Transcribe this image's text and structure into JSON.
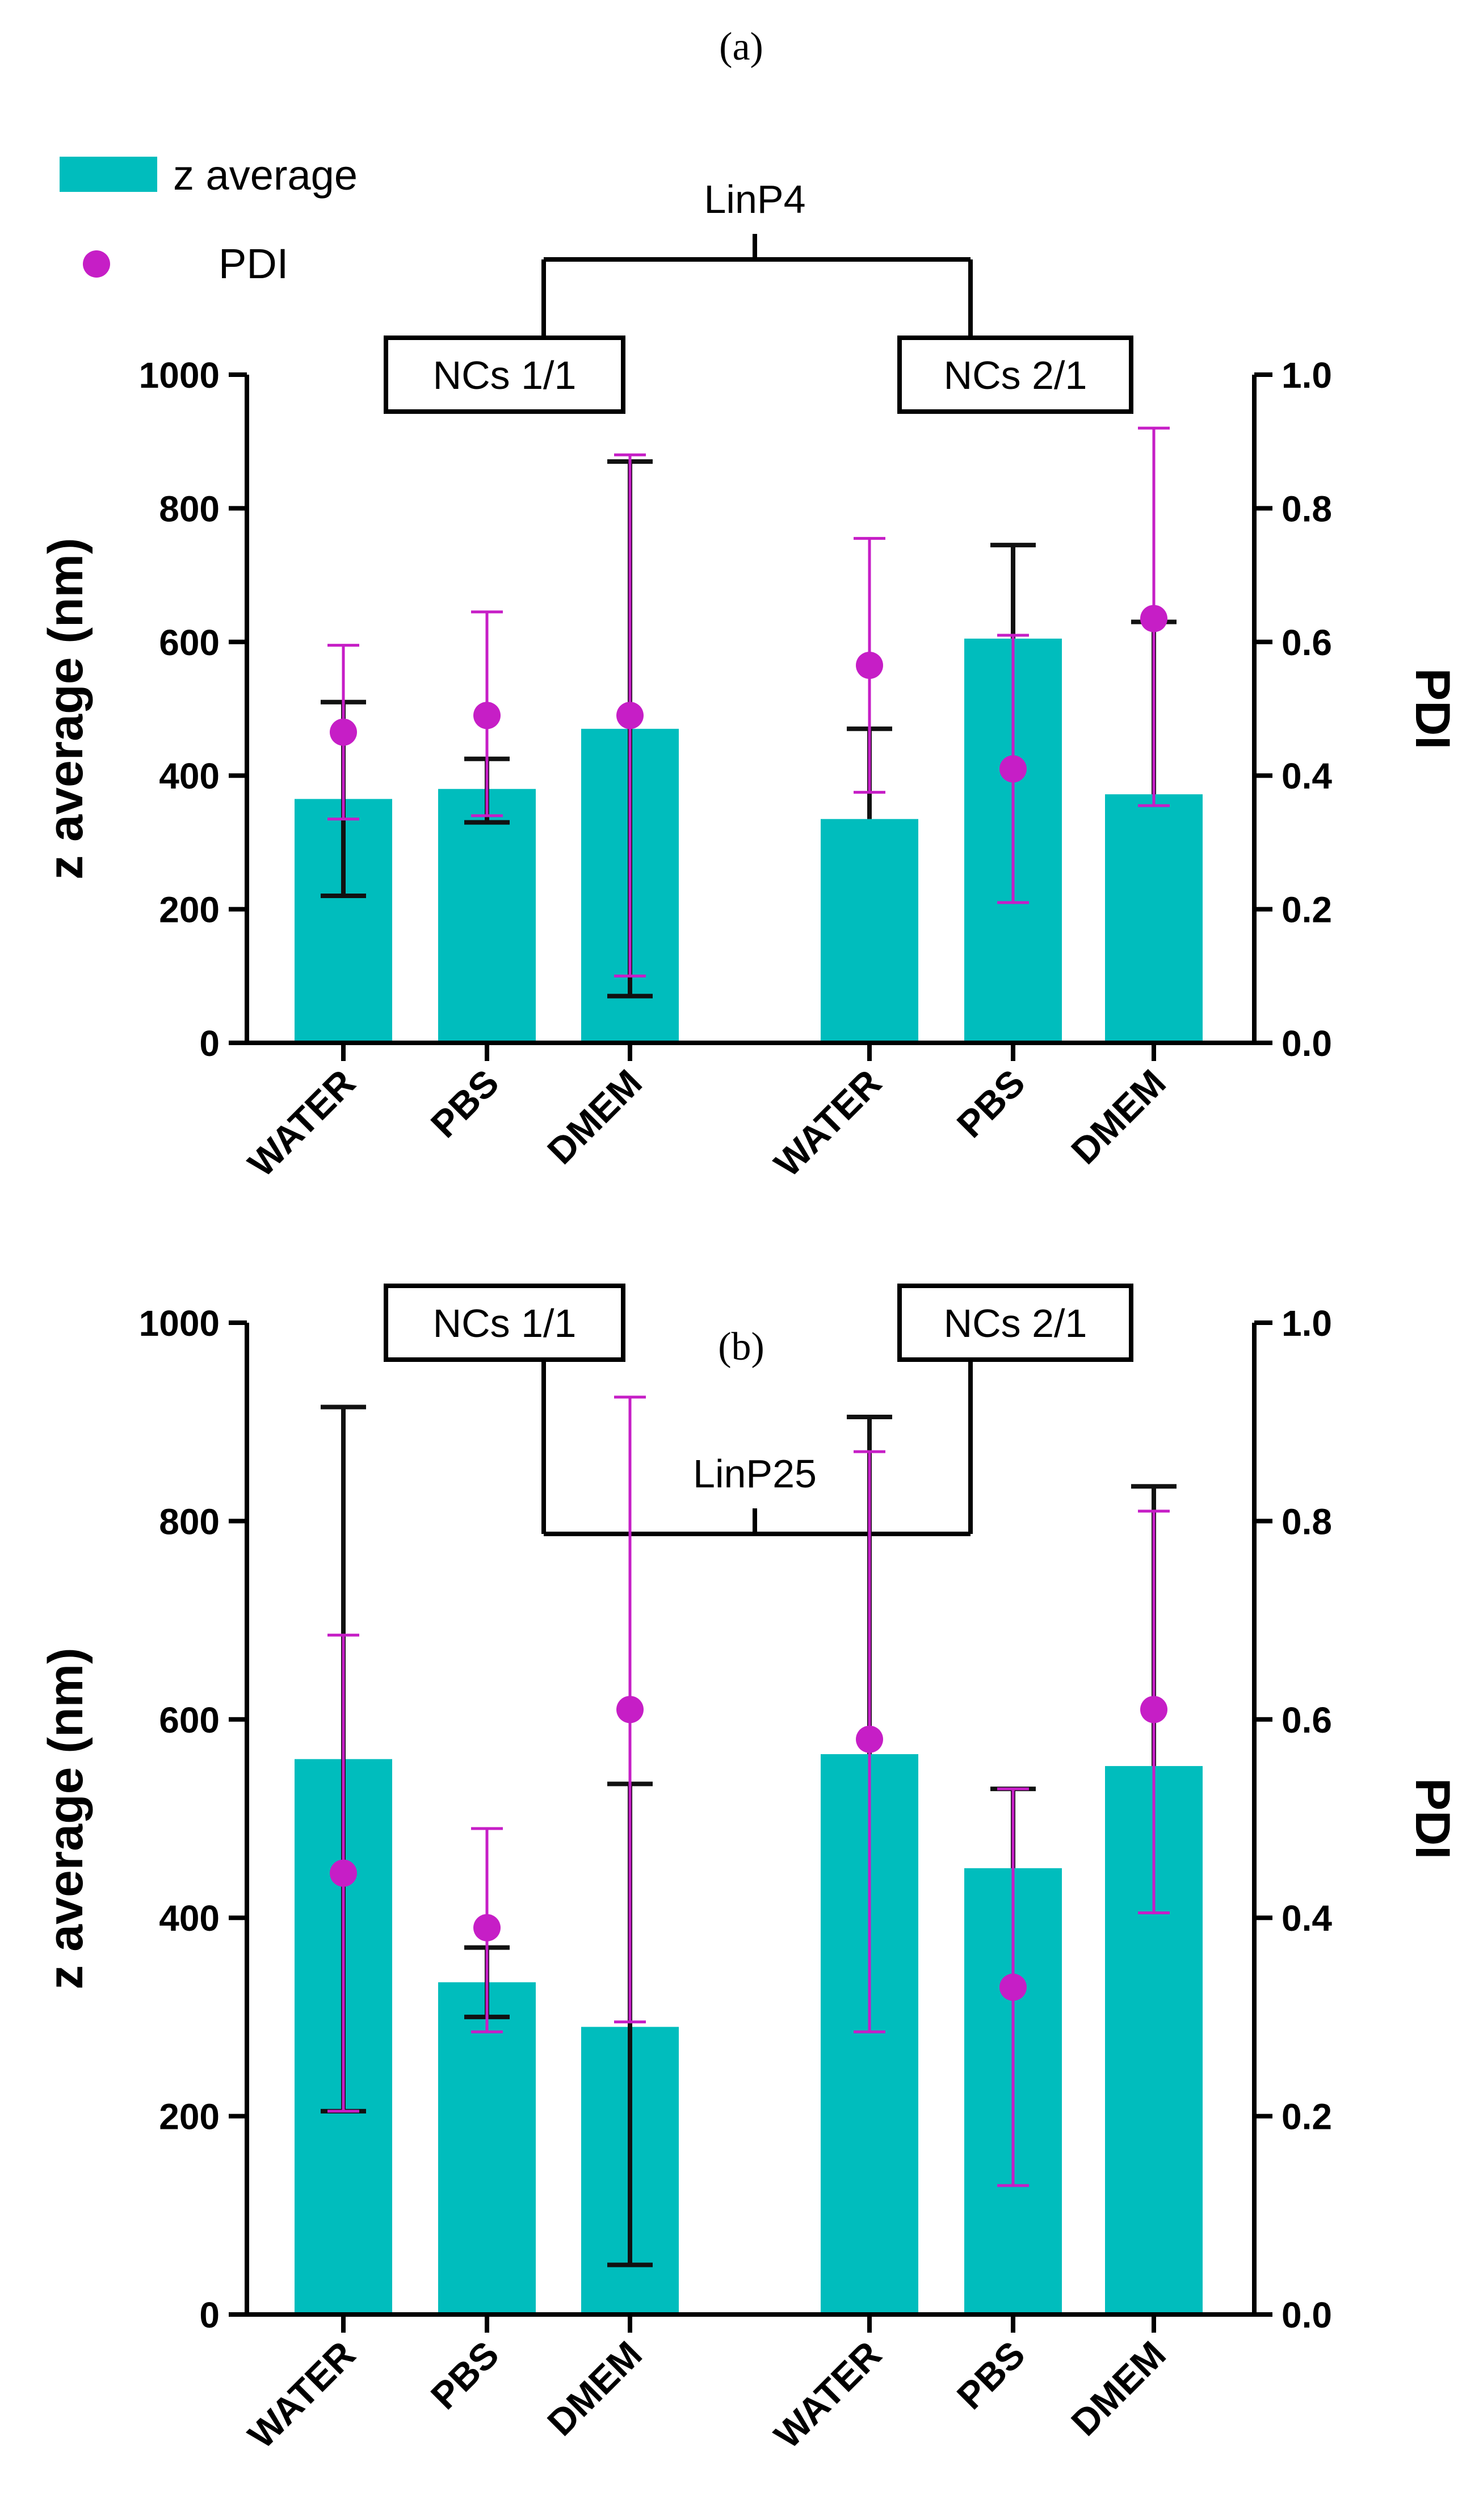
{
  "legend": {
    "bar_label": "z average",
    "point_label": "PDI",
    "bar_color": "#00BDBD",
    "point_color": "#C61EC6"
  },
  "chart_data": [
    {
      "type": "bar",
      "panel": "(a)",
      "title": "LinP4",
      "groups": [
        "NCs 1/1",
        "NCs 2/1"
      ],
      "categories": [
        "WATER",
        "PBS",
        "DMEM",
        "WATER",
        "PBS",
        "DMEM"
      ],
      "ylabel": "z average (nm)",
      "y2label": "PDI",
      "ylim": [
        0,
        1000
      ],
      "y2lim": [
        0,
        1.0
      ],
      "yticks": [
        "0",
        "200",
        "400",
        "600",
        "800",
        "1000"
      ],
      "y2ticks": [
        "0.0",
        "0.2",
        "0.4",
        "0.6",
        "0.8",
        "1.0"
      ],
      "series": [
        {
          "name": "z average",
          "axis": "left",
          "values": [
            365,
            380,
            470,
            335,
            605,
            372
          ],
          "err_low": [
            220,
            330,
            70,
            335,
            605,
            372
          ],
          "err_high": [
            510,
            425,
            870,
            470,
            745,
            630
          ]
        },
        {
          "name": "PDI",
          "axis": "right",
          "values": [
            0.465,
            0.49,
            0.49,
            0.565,
            0.41,
            0.635
          ],
          "err_low": [
            0.335,
            0.34,
            0.1,
            0.375,
            0.21,
            0.355
          ],
          "err_high": [
            0.595,
            0.645,
            0.88,
            0.755,
            0.61,
            0.92
          ]
        }
      ]
    },
    {
      "type": "bar",
      "panel": "(b)",
      "title": "LinP25",
      "groups": [
        "NCs 1/1",
        "NCs 2/1"
      ],
      "categories": [
        "WATER",
        "PBS",
        "DMEM",
        "WATER",
        "PBS",
        "DMEM"
      ],
      "ylabel": "z average (nm)",
      "y2label": "PDI",
      "ylim": [
        0,
        1000
      ],
      "y2lim": [
        0,
        1.0
      ],
      "yticks": [
        "0",
        "200",
        "400",
        "600",
        "800",
        "1000"
      ],
      "y2ticks": [
        "0.0",
        "0.2",
        "0.4",
        "0.6",
        "0.8",
        "1.0"
      ],
      "series": [
        {
          "name": "z average",
          "axis": "left",
          "values": [
            560,
            335,
            290,
            565,
            450,
            553
          ],
          "err_low": [
            205,
            300,
            50,
            565,
            450,
            553
          ],
          "err_high": [
            915,
            370,
            535,
            905,
            530,
            835
          ]
        },
        {
          "name": "PDI",
          "axis": "right",
          "values": [
            0.445,
            0.39,
            0.61,
            0.58,
            0.33,
            0.61
          ],
          "err_low": [
            0.205,
            0.285,
            0.295,
            0.285,
            0.13,
            0.405
          ],
          "err_high": [
            0.685,
            0.49,
            0.925,
            0.87,
            0.53,
            0.81
          ]
        }
      ]
    }
  ]
}
